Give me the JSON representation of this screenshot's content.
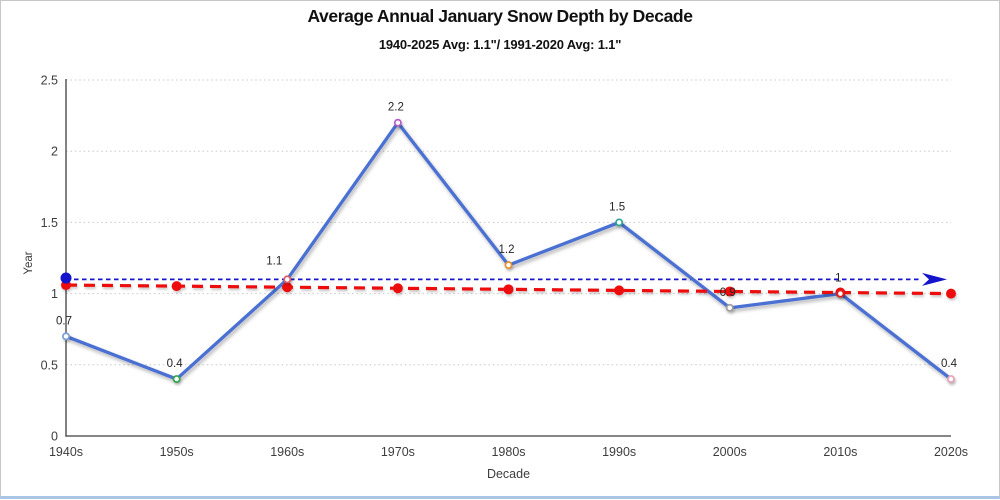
{
  "chart_data": {
    "type": "line",
    "title": "Average Annual January Snow Depth by Decade",
    "subtitle": "1940-2025 Avg: 1.1\"/ 1991-2020 Avg: 1.1\"",
    "xlabel": "Decade",
    "ylabel": "Year",
    "categories": [
      "1940s",
      "1950s",
      "1960s",
      "1970s",
      "1980s",
      "1990s",
      "2000s",
      "2010s",
      "2020s"
    ],
    "series": [
      {
        "name": "average-january-snow-depth",
        "values": [
          0.7,
          0.4,
          1.1,
          2.2,
          1.2,
          1.5,
          0.9,
          1,
          0.4
        ],
        "point_labels": [
          "0.7",
          "0.4",
          "1.1",
          "2.2",
          "1.2",
          "1.5",
          "0.9",
          "1",
          "0.4"
        ],
        "line_color": "#4a70d2",
        "marker_colors": [
          "#7b9fd8",
          "#2ea84a",
          "#e05a64",
          "#b45fc8",
          "#e6902a",
          "#2ba693",
          "#9e9e9e",
          "#dd2222",
          "#e6a1b5"
        ]
      }
    ],
    "overlays": [
      {
        "name": "long-term-average-reference-line",
        "type": "horizontal-dashed-arrow-line",
        "value": 1.1,
        "color": "#1414cc"
      },
      {
        "name": "linear-trend-line",
        "type": "dashed-trend-line-with-points",
        "start_value": 1.06,
        "end_value": 1.0,
        "color": "#ee1111"
      }
    ],
    "yticks": [
      "0",
      "0.5",
      "1",
      "1.5",
      "2",
      "2.5"
    ],
    "ytick_values": [
      0,
      0.5,
      1,
      1.5,
      2,
      2.5
    ],
    "ylim": [
      0,
      2.5
    ],
    "grid": "horizontal-dotted",
    "grid_color": "#cccccc",
    "axis_color": "#3f3f3f",
    "tick_text_color": "#3d3d3d",
    "data_label_color": "#262626",
    "legend": "none"
  }
}
